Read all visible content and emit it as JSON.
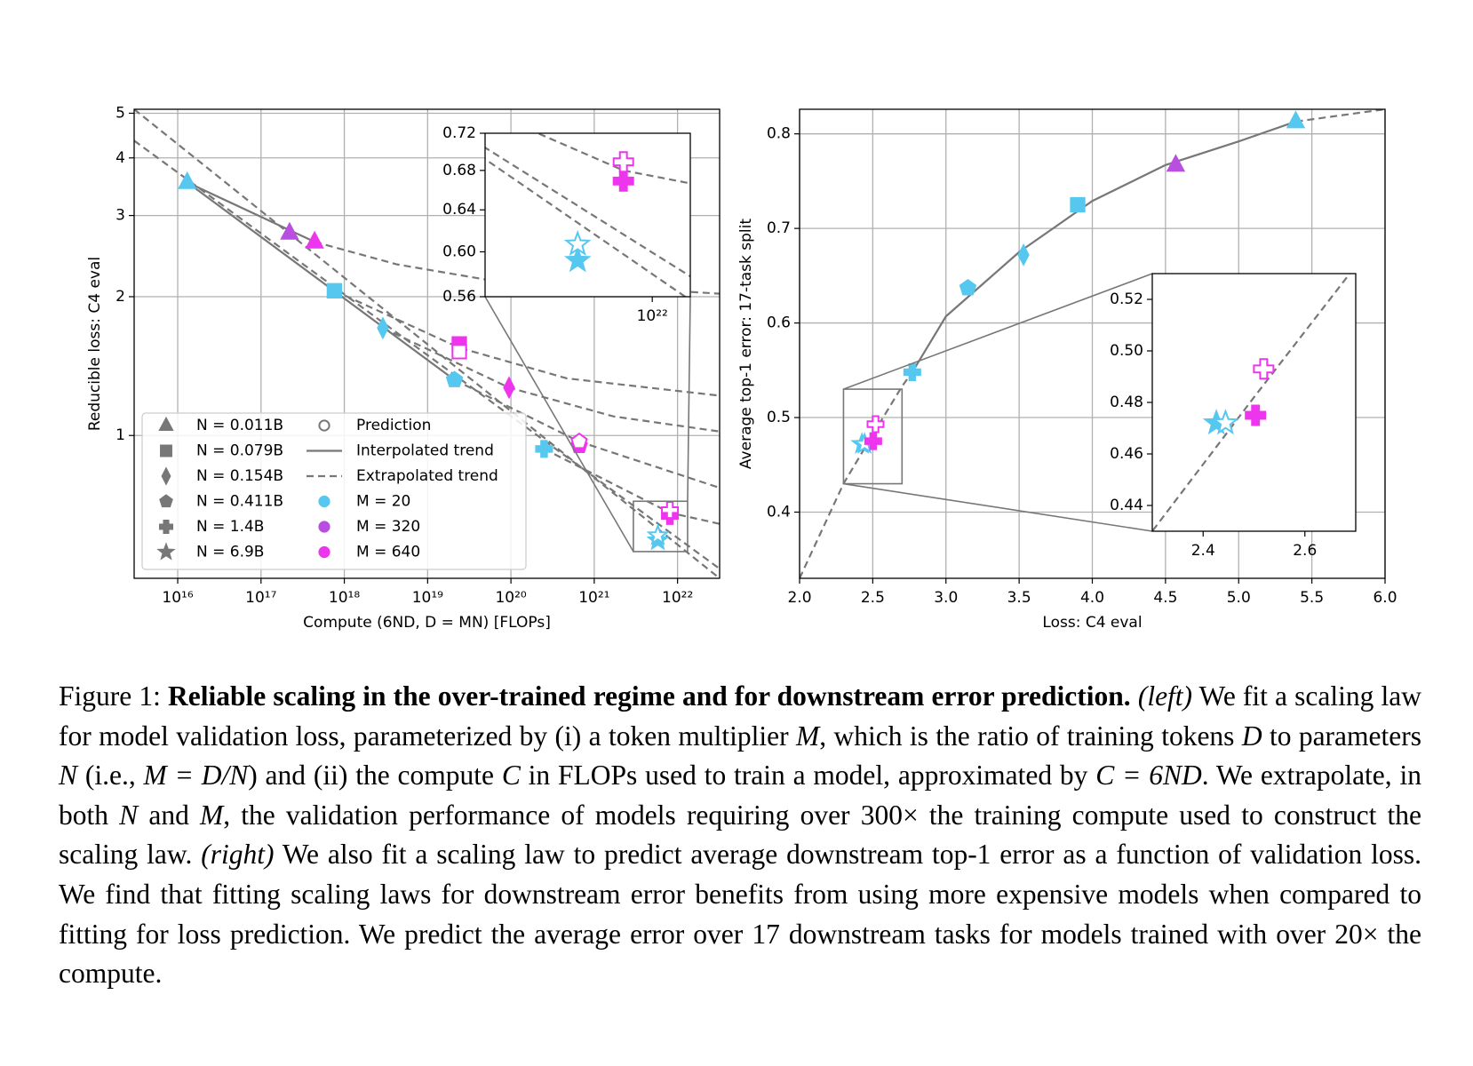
{
  "chart_data": [
    {
      "type": "scatter",
      "xlog": true,
      "ylog": true,
      "grid": true,
      "xlabel": "Compute (6ND, D = MN) [FLOPs]",
      "ylabel": "Reducible loss: C4 eval",
      "xlim": [
        3000000000000000.0,
        3.2e+22
      ],
      "ylim": [
        0.49,
        5.1
      ],
      "xticks": [
        {
          "value": 1e+16,
          "label": "10¹⁶"
        },
        {
          "value": 1e+17,
          "label": "10¹⁷"
        },
        {
          "value": 1e+18,
          "label": "10¹⁸"
        },
        {
          "value": 1e+19,
          "label": "10¹⁹"
        },
        {
          "value": 1e+20,
          "label": "10²⁰"
        },
        {
          "value": 1e+21,
          "label": "10²¹"
        },
        {
          "value": 1e+22,
          "label": "10²²"
        }
      ],
      "yticks": [
        1,
        2,
        3,
        4,
        5
      ],
      "legend": "lower left",
      "shapes": [
        {
          "name": "N = 0.011B",
          "shape": "triangle"
        },
        {
          "name": "N = 0.079B",
          "shape": "square"
        },
        {
          "name": "N = 0.154B",
          "shape": "diamond"
        },
        {
          "name": "N = 0.411B",
          "shape": "pentagon"
        },
        {
          "name": "N = 1.4B",
          "shape": "plus"
        },
        {
          "name": "N = 6.9B",
          "shape": "star"
        }
      ],
      "prediction_label": "Prediction",
      "trend_labels": {
        "solid": "Interpolated trend",
        "dashed": "Extrapolated trend"
      },
      "series": [
        {
          "name": "M = 20",
          "color": "#56c8f0",
          "shapes": [
            "triangle",
            "square",
            "diamond",
            "pentagon",
            "plus",
            "star"
          ],
          "x": [
            1.3e+16,
            7.6e+17,
            2.9e+18,
            2.1e+19,
            2.5e+20,
            5.8e+21
          ],
          "values": [
            3.54,
            2.06,
            1.71,
            1.32,
            0.935,
            0.592
          ],
          "predictions": {
            "shapes": [
              "star"
            ],
            "x": [
              5.8e+21
            ],
            "values": [
              0.607
            ]
          }
        },
        {
          "name": "M = 320",
          "color": "#b84fe0",
          "shapes": [
            "triangle"
          ],
          "x": [
            2.2e+17
          ],
          "values": [
            2.75
          ]
        },
        {
          "name": "M = 640",
          "color": "#ee35ee",
          "shapes": [
            "triangle",
            "square",
            "diamond",
            "pentagon",
            "plus"
          ],
          "x": [
            4.4e+17,
            2.4e+19,
            9.5e+19,
            6.6e+20,
            8.1e+21
          ],
          "values": [
            2.63,
            1.58,
            1.27,
            0.95,
            0.669
          ],
          "predictions": {
            "shapes": [
              "square",
              "pentagon",
              "plus"
            ],
            "x": [
              2.4e+19,
              6.6e+20,
              8.1e+21
            ],
            "values": [
              1.52,
              0.97,
              0.689
            ]
          }
        }
      ],
      "trends": [
        {
          "style": "dashed",
          "x": [
            3000000000000000.0,
            3.2e+22
          ],
          "y": [
            5.1,
            0.49
          ]
        },
        {
          "style": "dashed",
          "x": [
            3000000000000000.0,
            3.2e+22
          ],
          "y": [
            4.36,
            0.514
          ]
        },
        {
          "style": "solid",
          "x": [
            1.3e+16,
            2.1e+19
          ],
          "y": [
            3.54,
            1.32
          ]
        },
        {
          "style": "solid",
          "x": [
            1.3e+16,
            4.4e+17
          ],
          "y": [
            3.54,
            2.63
          ]
        },
        {
          "style": "dashed",
          "x": [
            4.4e+17,
            4.3e+18,
            4.9e+19,
            3.2e+22
          ],
          "y": [
            2.63,
            2.35,
            2.18,
            2.03
          ]
        },
        {
          "style": "dashed",
          "x": [
            7.6e+17,
            2.4e+19,
            4.7e+20,
            3.2e+22
          ],
          "y": [
            2.06,
            1.55,
            1.33,
            1.22
          ]
        },
        {
          "style": "dashed",
          "x": [
            2.9e+18,
            9.5e+19,
            1.7e+21,
            3.2e+22
          ],
          "y": [
            1.71,
            1.27,
            1.1,
            1.02
          ]
        },
        {
          "style": "dashed",
          "x": [
            2.1e+19,
            6.6e+20,
            3.2e+22
          ],
          "y": [
            1.32,
            0.97,
            0.77
          ]
        },
        {
          "style": "dashed",
          "x": [
            2.5e+20,
            8.1e+21,
            3.2e+22
          ],
          "y": [
            0.935,
            0.68,
            0.643
          ]
        }
      ],
      "inset": {
        "xlim": [
          2.95e+21,
          1.32e+22
        ],
        "ylim": [
          0.56,
          0.72
        ],
        "xticks": [
          {
            "value": 1e+22,
            "label": "10²²"
          }
        ],
        "yticks": [
          0.56,
          {
            "value": 0.6,
            "label": "0.60"
          },
          0.64,
          0.68,
          0.72
        ]
      }
    },
    {
      "type": "scatter",
      "grid": true,
      "xlabel": "Loss: C4 eval",
      "ylabel": "Average top-1 error: 17-task split",
      "xlim": [
        2.0,
        6.0
      ],
      "ylim": [
        0.33,
        0.826
      ],
      "xticks": [
        {
          "value": 2,
          "label": "2.0"
        },
        2.5,
        {
          "value": 3,
          "label": "3.0"
        },
        3.5,
        {
          "value": 4,
          "label": "4.0"
        },
        4.5,
        {
          "value": 5,
          "label": "5.0"
        },
        5.5,
        {
          "value": 6,
          "label": "6.0"
        }
      ],
      "yticks": [
        0.4,
        0.5,
        0.6,
        0.7,
        0.8
      ],
      "series": [
        {
          "color": "#56c8f0",
          "shapes": [
            "triangle",
            "square",
            "diamond",
            "pentagon",
            "plus",
            "star"
          ],
          "x": [
            5.39,
            3.9,
            3.53,
            3.15,
            2.77,
            2.426
          ],
          "values": [
            0.813,
            0.725,
            0.672,
            0.637,
            0.548,
            0.472
          ],
          "predictions": {
            "shapes": [
              "star"
            ],
            "x": [
              2.444
            ],
            "values": [
              0.472
            ]
          }
        },
        {
          "color": "#b84fe0",
          "shapes": [
            "triangle"
          ],
          "x": [
            4.57
          ],
          "values": [
            0.767
          ]
        },
        {
          "color": "#ee35ee",
          "shapes": [
            "plus"
          ],
          "x": [
            2.503
          ],
          "values": [
            0.475
          ],
          "predictions": {
            "shapes": [
              "plus"
            ],
            "x": [
              2.519
            ],
            "values": [
              0.493
            ]
          }
        }
      ],
      "trends": [
        {
          "style": "dashed",
          "x": [
            2.0,
            2.3,
            2.5,
            2.7,
            2.77
          ],
          "y": [
            0.33,
            0.43,
            0.482,
            0.533,
            0.548
          ]
        },
        {
          "style": "solid",
          "x": [
            2.77,
            3.0,
            3.5,
            4.0,
            4.5,
            5.0,
            5.39
          ],
          "y": [
            0.548,
            0.607,
            0.675,
            0.729,
            0.767,
            0.792,
            0.813
          ]
        },
        {
          "style": "dashed",
          "x": [
            5.39,
            6.0
          ],
          "y": [
            0.813,
            0.826
          ]
        }
      ],
      "inset": {
        "xlim": [
          2.3,
          2.7
        ],
        "ylim": [
          0.43,
          0.53
        ],
        "xticks": [
          2.4,
          2.6
        ],
        "yticks": [
          0.44,
          0.46,
          0.48,
          {
            "value": 0.5,
            "label": "0.50"
          },
          0.52
        ]
      }
    }
  ],
  "caption": {
    "runs": [
      {
        "text": "Figure 1: ",
        "style": "normal"
      },
      {
        "text": "Reliable scaling in the over-trained regime and for downstream error prediction.",
        "style": "bold"
      },
      {
        "text": " ",
        "style": "normal"
      },
      {
        "text": "(left)",
        "style": "italic"
      },
      {
        "text": " We fit a scaling law for model validation loss, parameterized by (i) a token multiplier ",
        "style": "normal"
      },
      {
        "text": "M",
        "style": "italic"
      },
      {
        "text": ", which is the ratio of training tokens ",
        "style": "normal"
      },
      {
        "text": "D",
        "style": "italic"
      },
      {
        "text": " to parameters ",
        "style": "normal"
      },
      {
        "text": "N",
        "style": "italic"
      },
      {
        "text": " (i.e., ",
        "style": "normal"
      },
      {
        "text": "M = D/N",
        "style": "italic"
      },
      {
        "text": ") and (ii) the compute ",
        "style": "normal"
      },
      {
        "text": "C",
        "style": "italic"
      },
      {
        "text": " in FLOPs used to train a model, approximated by ",
        "style": "normal"
      },
      {
        "text": "C = 6ND",
        "style": "italic"
      },
      {
        "text": ". We extrapolate, in both ",
        "style": "normal"
      },
      {
        "text": "N",
        "style": "italic"
      },
      {
        "text": " and ",
        "style": "normal"
      },
      {
        "text": "M",
        "style": "italic"
      },
      {
        "text": ", the validation performance of models requiring over 300× the training compute used to construct the scaling law. ",
        "style": "normal"
      },
      {
        "text": "(right)",
        "style": "italic"
      },
      {
        "text": " We also fit a scaling law to predict average downstream top-1 error as a function of validation loss. We find that fitting scaling laws for downstream error benefits from using more expensive models when compared to fitting for loss prediction. We predict the average error over 17 downstream tasks for models trained with over 20× the compute.",
        "style": "normal"
      }
    ]
  }
}
